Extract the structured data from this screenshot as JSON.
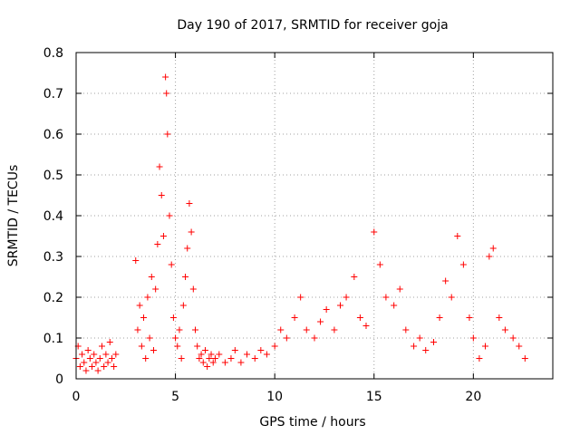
{
  "chart_data": {
    "type": "scatter",
    "title": "Day 190 of 2017, SRMTID for receiver goja",
    "xlabel": "GPS time / hours",
    "ylabel": "SRMTID / TECUs",
    "xlim": [
      0,
      24
    ],
    "ylim": [
      0,
      0.8
    ],
    "x_ticks": [
      0,
      5,
      10,
      15,
      20
    ],
    "y_ticks": [
      0,
      0.1,
      0.2,
      0.3,
      0.4,
      0.5,
      0.6,
      0.7,
      0.8
    ],
    "x_tick_labels": [
      "0",
      "5",
      "10",
      "15",
      "20"
    ],
    "y_tick_labels": [
      "0",
      "0.1",
      "0.2",
      "0.3",
      "0.4",
      "0.5",
      "0.6",
      "0.7",
      "0.8"
    ],
    "grid": true,
    "marker": "+",
    "marker_color": "#ff0000",
    "series": [
      {
        "name": "SRMTID",
        "x": [
          0.0,
          0.1,
          0.2,
          0.3,
          0.4,
          0.5,
          0.6,
          0.7,
          0.8,
          0.9,
          1.0,
          1.1,
          1.2,
          1.3,
          1.4,
          1.5,
          1.6,
          1.7,
          1.8,
          1.9,
          2.0,
          3.0,
          3.1,
          3.2,
          3.3,
          3.4,
          3.5,
          3.6,
          3.7,
          3.8,
          3.9,
          4.0,
          4.1,
          4.2,
          4.3,
          4.4,
          4.5,
          4.55,
          4.6,
          4.7,
          4.8,
          4.9,
          5.0,
          5.1,
          5.2,
          5.3,
          5.4,
          5.5,
          5.6,
          5.7,
          5.8,
          5.9,
          6.0,
          6.1,
          6.2,
          6.3,
          6.4,
          6.5,
          6.6,
          6.7,
          6.8,
          6.9,
          7.0,
          7.2,
          7.5,
          7.8,
          8.0,
          8.3,
          8.6,
          9.0,
          9.3,
          9.6,
          10.0,
          10.3,
          10.6,
          11.0,
          11.3,
          11.6,
          12.0,
          12.3,
          12.6,
          13.0,
          13.3,
          13.6,
          14.0,
          14.3,
          14.6,
          15.0,
          15.3,
          15.6,
          16.0,
          16.3,
          16.6,
          17.0,
          17.3,
          17.6,
          18.0,
          18.3,
          18.6,
          18.9,
          19.2,
          19.5,
          19.8,
          20.0,
          20.3,
          20.6,
          20.8,
          21.0,
          21.3,
          21.6,
          22.0,
          22.3,
          22.6
        ],
        "y": [
          0.05,
          0.08,
          0.03,
          0.06,
          0.04,
          0.02,
          0.07,
          0.05,
          0.03,
          0.06,
          0.04,
          0.02,
          0.05,
          0.08,
          0.03,
          0.06,
          0.04,
          0.09,
          0.05,
          0.03,
          0.06,
          0.29,
          0.12,
          0.18,
          0.08,
          0.15,
          0.05,
          0.2,
          0.1,
          0.25,
          0.07,
          0.22,
          0.33,
          0.52,
          0.45,
          0.35,
          0.74,
          0.7,
          0.6,
          0.4,
          0.28,
          0.15,
          0.1,
          0.08,
          0.12,
          0.05,
          0.18,
          0.25,
          0.32,
          0.43,
          0.36,
          0.22,
          0.12,
          0.08,
          0.05,
          0.06,
          0.04,
          0.07,
          0.03,
          0.05,
          0.06,
          0.04,
          0.05,
          0.06,
          0.04,
          0.05,
          0.07,
          0.04,
          0.06,
          0.05,
          0.07,
          0.06,
          0.08,
          0.12,
          0.1,
          0.15,
          0.2,
          0.12,
          0.1,
          0.14,
          0.17,
          0.12,
          0.18,
          0.2,
          0.25,
          0.15,
          0.13,
          0.36,
          0.28,
          0.2,
          0.18,
          0.22,
          0.12,
          0.08,
          0.1,
          0.07,
          0.09,
          0.15,
          0.24,
          0.2,
          0.35,
          0.28,
          0.15,
          0.1,
          0.05,
          0.08,
          0.3,
          0.32,
          0.15,
          0.12,
          0.1,
          0.08,
          0.05
        ]
      }
    ]
  }
}
